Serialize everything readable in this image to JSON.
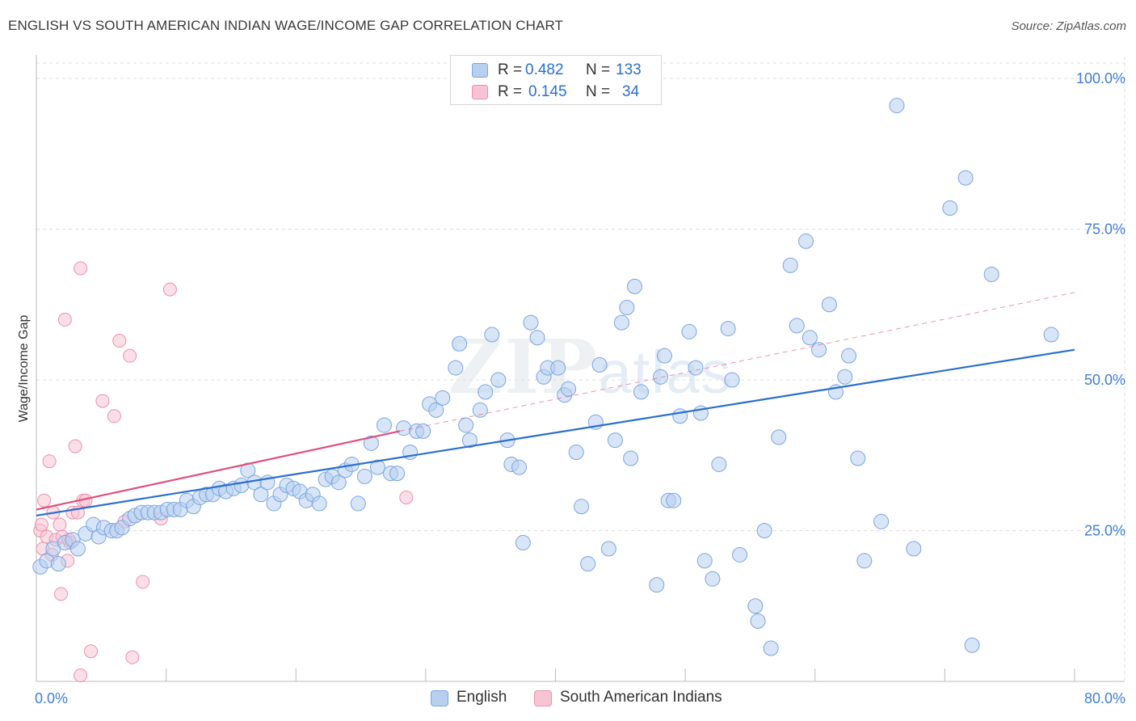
{
  "header": {
    "title": "ENGLISH VS SOUTH AMERICAN INDIAN WAGE/INCOME GAP CORRELATION CHART",
    "source": "Source: ZipAtlas.com"
  },
  "watermark": {
    "zip": "ZIP",
    "atlas": "atlas"
  },
  "legend": {
    "english": {
      "r_label": "R =",
      "r_value": "0.482",
      "n_label": "N =",
      "n_value": "133"
    },
    "sa": {
      "r_label": "R =",
      "r_value": "0.145",
      "n_label": "N =",
      "n_value": "34"
    }
  },
  "bottom_legend": {
    "english": "English",
    "sa": "South American Indians"
  },
  "colors": {
    "english_fill": "#b8d0f0",
    "english_stroke": "#7aa5e0",
    "english_line": "#2a6fce",
    "sa_fill": "#f8c4d4",
    "sa_stroke": "#ee8fae",
    "sa_line": "#e0507d",
    "tick_label": "#3f7ed8",
    "grid": "#dddddd"
  },
  "chart_data": {
    "type": "scatter",
    "title": "ENGLISH VS SOUTH AMERICAN INDIAN WAGE/INCOME GAP CORRELATION CHART",
    "xlabel": "",
    "ylabel": "Wage/Income Gap",
    "xlim": [
      0,
      80
    ],
    "ylim": [
      0,
      100
    ],
    "x_tick_labels": [
      "0.0%",
      "80.0%"
    ],
    "y_tick_labels": [
      "25.0%",
      "50.0%",
      "75.0%",
      "100.0%"
    ],
    "y_ticks": [
      25,
      50,
      75,
      100
    ],
    "grid": true,
    "series": [
      {
        "name": "English",
        "r": 0.482,
        "n": 133,
        "trend": {
          "x": [
            0,
            80
          ],
          "y": [
            27.5,
            55.0
          ]
        },
        "points": [
          [
            0.3,
            19
          ],
          [
            0.8,
            20
          ],
          [
            1.3,
            22
          ],
          [
            1.7,
            19.5
          ],
          [
            2.2,
            23
          ],
          [
            2.8,
            23.5
          ],
          [
            3.2,
            22
          ],
          [
            3.8,
            24.5
          ],
          [
            4.4,
            26
          ],
          [
            4.8,
            24
          ],
          [
            5.2,
            25.5
          ],
          [
            5.8,
            25
          ],
          [
            6.2,
            25
          ],
          [
            6.6,
            25.5
          ],
          [
            7.2,
            27
          ],
          [
            7.6,
            27.5
          ],
          [
            8.1,
            28
          ],
          [
            8.6,
            28
          ],
          [
            9.1,
            28
          ],
          [
            9.6,
            28
          ],
          [
            10.1,
            28.5
          ],
          [
            10.6,
            28.5
          ],
          [
            11.1,
            28.5
          ],
          [
            11.6,
            30
          ],
          [
            12.1,
            29
          ],
          [
            12.6,
            30.5
          ],
          [
            13.1,
            31
          ],
          [
            13.6,
            31
          ],
          [
            14.1,
            32
          ],
          [
            14.6,
            31.5
          ],
          [
            15.2,
            32
          ],
          [
            15.8,
            32.5
          ],
          [
            16.3,
            35
          ],
          [
            16.8,
            33
          ],
          [
            17.3,
            31
          ],
          [
            17.8,
            33
          ],
          [
            18.3,
            29.5
          ],
          [
            18.8,
            31
          ],
          [
            19.3,
            32.5
          ],
          [
            19.8,
            32
          ],
          [
            20.3,
            31.5
          ],
          [
            20.8,
            30
          ],
          [
            21.3,
            31
          ],
          [
            21.8,
            29.5
          ],
          [
            22.3,
            33.5
          ],
          [
            22.8,
            34
          ],
          [
            23.3,
            33
          ],
          [
            23.8,
            35
          ],
          [
            24.3,
            36
          ],
          [
            24.8,
            29.5
          ],
          [
            25.3,
            34
          ],
          [
            25.8,
            39.5
          ],
          [
            26.3,
            35.5
          ],
          [
            26.8,
            42.5
          ],
          [
            27.3,
            34.5
          ],
          [
            27.8,
            34.5
          ],
          [
            28.3,
            42
          ],
          [
            28.8,
            38
          ],
          [
            29.3,
            41.5
          ],
          [
            29.8,
            41.5
          ],
          [
            30.3,
            46
          ],
          [
            30.8,
            45
          ],
          [
            31.3,
            47
          ],
          [
            32.3,
            52
          ],
          [
            32.6,
            56
          ],
          [
            33.1,
            42.5
          ],
          [
            33.4,
            40
          ],
          [
            34.2,
            45
          ],
          [
            34.6,
            48
          ],
          [
            35.1,
            57.5
          ],
          [
            35.6,
            50
          ],
          [
            36.3,
            40
          ],
          [
            36.6,
            36
          ],
          [
            37.2,
            35.5
          ],
          [
            37.5,
            23
          ],
          [
            38.1,
            59.5
          ],
          [
            38.6,
            57
          ],
          [
            39.1,
            50.5
          ],
          [
            39.4,
            52
          ],
          [
            40.2,
            52
          ],
          [
            40.7,
            47.5
          ],
          [
            41.0,
            48.5
          ],
          [
            41.6,
            38
          ],
          [
            42.0,
            29
          ],
          [
            42.5,
            19.5
          ],
          [
            43.1,
            43
          ],
          [
            43.4,
            52.5
          ],
          [
            44.1,
            22
          ],
          [
            44.6,
            40
          ],
          [
            45.1,
            59.5
          ],
          [
            45.5,
            62
          ],
          [
            45.8,
            37
          ],
          [
            46.1,
            65.5
          ],
          [
            46.6,
            48
          ],
          [
            47.8,
            16
          ],
          [
            48.1,
            50.5
          ],
          [
            48.4,
            54
          ],
          [
            48.7,
            30
          ],
          [
            49.1,
            30
          ],
          [
            49.6,
            44
          ],
          [
            50.3,
            58
          ],
          [
            50.8,
            52
          ],
          [
            51.2,
            44.5
          ],
          [
            51.5,
            20
          ],
          [
            52.1,
            17
          ],
          [
            52.6,
            36
          ],
          [
            53.3,
            58.5
          ],
          [
            53.6,
            50
          ],
          [
            54.2,
            21
          ],
          [
            55.4,
            12.5
          ],
          [
            55.6,
            10
          ],
          [
            56.1,
            25
          ],
          [
            56.6,
            5.5
          ],
          [
            57.2,
            40.5
          ],
          [
            58.1,
            69
          ],
          [
            58.6,
            59
          ],
          [
            59.3,
            73
          ],
          [
            59.6,
            57
          ],
          [
            60.3,
            55
          ],
          [
            61.1,
            62.5
          ],
          [
            61.6,
            48
          ],
          [
            62.3,
            50.5
          ],
          [
            62.6,
            54
          ],
          [
            63.3,
            37
          ],
          [
            63.8,
            20
          ],
          [
            65.1,
            26.5
          ],
          [
            66.3,
            95.5
          ],
          [
            67.6,
            22
          ],
          [
            70.4,
            78.5
          ],
          [
            71.6,
            83.5
          ],
          [
            72.1,
            6
          ],
          [
            73.6,
            67.5
          ],
          [
            78.2,
            57.5
          ]
        ]
      },
      {
        "name": "South American Indians",
        "r": 0.145,
        "n": 34,
        "trend": {
          "x": [
            0,
            28
          ],
          "y": [
            28.5,
            41.5
          ]
        },
        "trend_extended": {
          "x": [
            28,
            80
          ],
          "y": [
            41.5,
            64.5
          ]
        },
        "points": [
          [
            0.3,
            25
          ],
          [
            0.5,
            22
          ],
          [
            0.8,
            24
          ],
          [
            0.6,
            30
          ],
          [
            1.0,
            36.5
          ],
          [
            1.3,
            28
          ],
          [
            1.5,
            23.5
          ],
          [
            1.8,
            26
          ],
          [
            2.0,
            24
          ],
          [
            2.2,
            60
          ],
          [
            2.4,
            20
          ],
          [
            2.6,
            23
          ],
          [
            2.8,
            28
          ],
          [
            3.0,
            39
          ],
          [
            3.2,
            28
          ],
          [
            3.4,
            68.5
          ],
          [
            3.6,
            30
          ],
          [
            3.8,
            30
          ],
          [
            4.2,
            5
          ],
          [
            5.1,
            46.5
          ],
          [
            6.0,
            44
          ],
          [
            6.4,
            56.5
          ],
          [
            6.8,
            26.5
          ],
          [
            7.2,
            54
          ],
          [
            7.4,
            4
          ],
          [
            8.2,
            16.5
          ],
          [
            9.6,
            27
          ],
          [
            10.3,
            65
          ],
          [
            28.5,
            30.5
          ],
          [
            1.9,
            14.5
          ],
          [
            3.4,
            1
          ],
          [
            0.4,
            26
          ],
          [
            1.2,
            21
          ],
          [
            2.5,
            23.5
          ]
        ]
      }
    ]
  }
}
